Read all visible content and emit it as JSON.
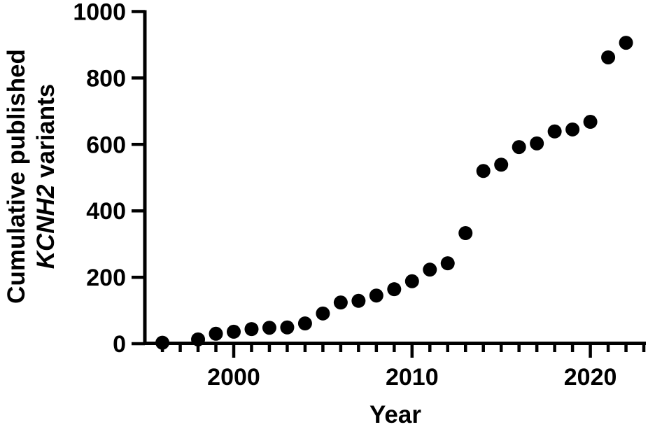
{
  "figure": {
    "background_color": "#ffffff",
    "foreground_color": "#000000"
  },
  "chart_data": {
    "type": "scatter",
    "title": "",
    "xlabel": "Year",
    "ylabel_line1": "Cumulative published",
    "ylabel_line2_italic": "KCNH2",
    "ylabel_line2_rest": " variants",
    "marker": {
      "shape": "circle",
      "color": "#000000",
      "radius_px": 10
    },
    "grid": false,
    "legend": false,
    "xlim": [
      1995,
      2023.2
    ],
    "ylim": [
      0,
      1000
    ],
    "y_ticks": [
      0,
      200,
      400,
      600,
      800,
      1000
    ],
    "x_labeled_ticks": [
      2000,
      2010,
      2020
    ],
    "x_minor_tick_start": 1996,
    "x_minor_tick_end": 2023,
    "x": [
      1996,
      1998,
      1999,
      2000,
      2001,
      2002,
      2003,
      2004,
      2005,
      2006,
      2007,
      2008,
      2009,
      2010,
      2011,
      2012,
      2013,
      2014,
      2015,
      2016,
      2017,
      2018,
      2019,
      2020,
      2021,
      2022
    ],
    "y": [
      3,
      13,
      30,
      36,
      44,
      48,
      49,
      61,
      91,
      124,
      129,
      145,
      164,
      188,
      223,
      242,
      333,
      520,
      539,
      592,
      603,
      639,
      645,
      668,
      862,
      906
    ]
  }
}
